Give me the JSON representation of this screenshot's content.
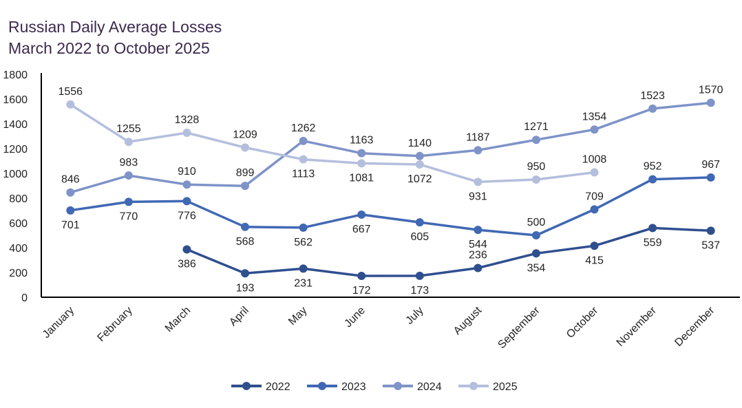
{
  "chart_data": {
    "type": "line",
    "title": "Russian Daily Average Losses",
    "subtitle": "March 2022 to October 2025",
    "xlabel": "",
    "ylabel": "",
    "ylim": [
      0,
      1800
    ],
    "yticks": [
      0,
      200,
      400,
      600,
      800,
      1000,
      1200,
      1400,
      1600,
      1800
    ],
    "grid": false,
    "legend_position": "bottom",
    "categories": [
      "January",
      "February",
      "March",
      "April",
      "May",
      "June",
      "July",
      "August",
      "September",
      "October",
      "November",
      "December"
    ],
    "series": [
      {
        "name": "2022",
        "color": "#2f4f8f",
        "values": [
          null,
          null,
          386,
          193,
          231,
          172,
          173,
          236,
          354,
          415,
          559,
          537
        ],
        "label_pos": [
          "",
          "",
          "below",
          "below",
          "below",
          "below",
          "below",
          "above",
          "below",
          "below",
          "below",
          "below"
        ]
      },
      {
        "name": "2023",
        "color": "#4068b4",
        "values": [
          701,
          770,
          776,
          568,
          562,
          667,
          605,
          544,
          500,
          709,
          952,
          967
        ],
        "label_pos": [
          "below",
          "below",
          "below",
          "below",
          "below",
          "below",
          "below",
          "below",
          "above",
          "above",
          "above",
          "above"
        ]
      },
      {
        "name": "2024",
        "color": "#7e93c8",
        "values": [
          846,
          983,
          910,
          899,
          1262,
          1163,
          1140,
          1187,
          1271,
          1354,
          1523,
          1570
        ],
        "label_pos": [
          "above",
          "above",
          "above",
          "above",
          "above",
          "above",
          "above",
          "above",
          "above",
          "above",
          "above",
          "above"
        ]
      },
      {
        "name": "2025",
        "color": "#b4bfdd",
        "values": [
          1556,
          1255,
          1328,
          1209,
          1113,
          1081,
          1072,
          931,
          950,
          1008,
          null,
          null
        ],
        "label_pos": [
          "above",
          "above",
          "above",
          "above",
          "below",
          "below",
          "below",
          "below",
          "above",
          "above",
          "",
          ""
        ]
      }
    ]
  }
}
